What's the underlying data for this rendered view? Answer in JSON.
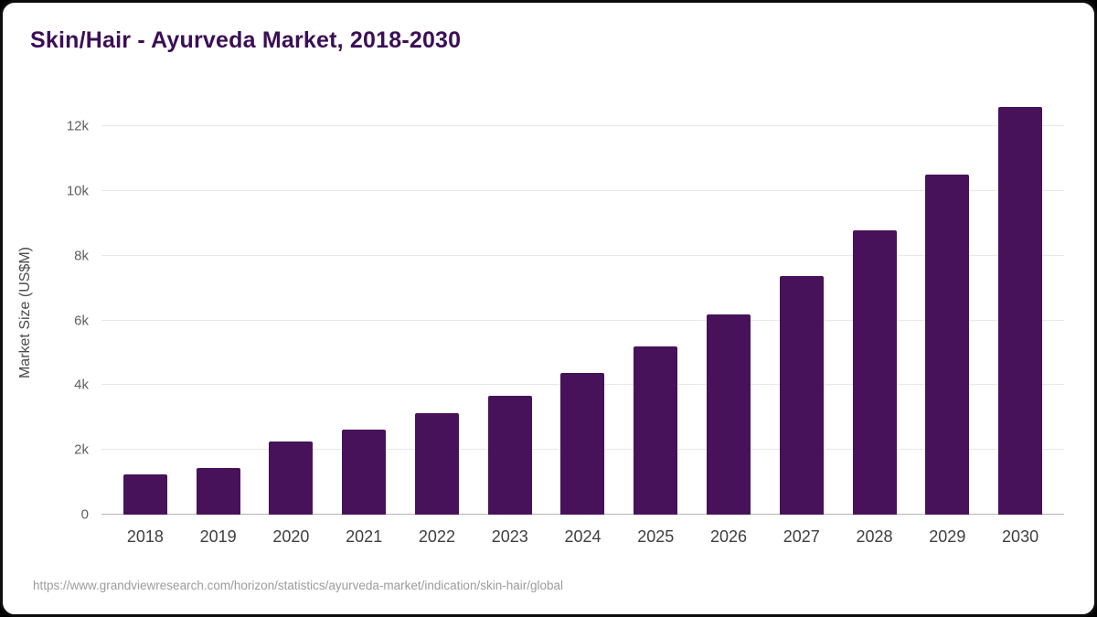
{
  "card": {
    "title": "Skin/Hair - Ayurveda Market, 2018-2030",
    "source_url": "https://www.grandviewresearch.com/horizon/statistics/ayurveda-market/indication/skin-hair/global"
  },
  "chart_data": {
    "type": "bar",
    "title": "Skin/Hair - Ayurveda Market, 2018-2030",
    "categories": [
      "2018",
      "2019",
      "2020",
      "2021",
      "2022",
      "2023",
      "2024",
      "2025",
      "2026",
      "2027",
      "2028",
      "2029",
      "2030"
    ],
    "values": [
      1250,
      1450,
      2270,
      2640,
      3130,
      3680,
      4380,
      5200,
      6180,
      7380,
      8780,
      10520,
      12600
    ],
    "xlabel": "",
    "ylabel": "Market Size (US$M)",
    "ylim": [
      0,
      13000
    ],
    "yticks": [
      0,
      2000,
      4000,
      6000,
      8000,
      10000,
      12000
    ],
    "ytick_labels": [
      "0",
      "2k",
      "4k",
      "6k",
      "8k",
      "10k",
      "12k"
    ],
    "grid": true,
    "legend": "none"
  },
  "colors": {
    "title": "#3b0f55",
    "bar": "#471259",
    "grid": "#e8e8e8",
    "axis_text": "#5f5f5f",
    "source_text": "#9c9c9c"
  }
}
